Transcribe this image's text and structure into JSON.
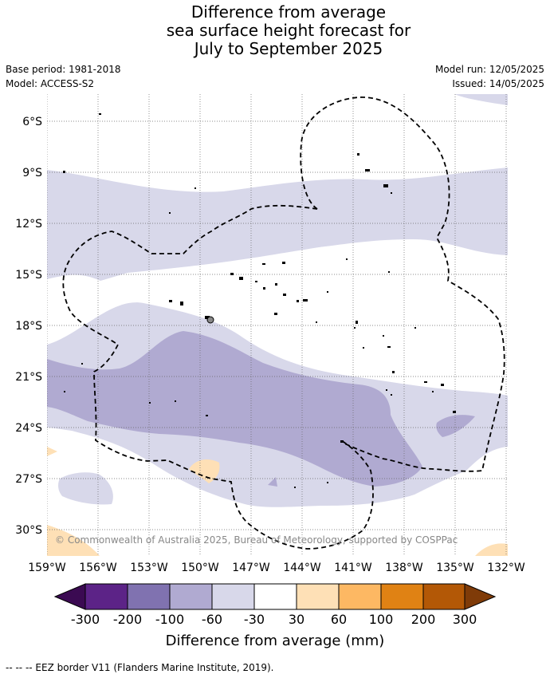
{
  "title": {
    "line1": "Difference from average",
    "line2": "sea surface height forecast for",
    "line3": "July to September 2025"
  },
  "meta": {
    "base_period": "Base period: 1981-2018",
    "model": "Model: ACCESS-S2",
    "model_run": "Model run: 12/05/2025",
    "issued": "Issued: 14/05/2025"
  },
  "map": {
    "lat_labels": [
      "6°S",
      "9°S",
      "12°S",
      "15°S",
      "18°S",
      "21°S",
      "24°S",
      "27°S",
      "30°S"
    ],
    "lon_labels": [
      "159°W",
      "156°W",
      "153°W",
      "150°W",
      "147°W",
      "144°W",
      "141°W",
      "138°W",
      "135°W",
      "132°W"
    ],
    "copyright": "© Commonwealth of Australia 2025, Bureau of Meteorology, supported by COSPPac"
  },
  "legend": {
    "ticks": [
      "-300",
      "-200",
      "-100",
      "-60",
      "-30",
      "30",
      "60",
      "100",
      "200",
      "300"
    ],
    "title": "Difference from average (mm)",
    "colors": [
      "#3b0a52",
      "#5c2387",
      "#8072b0",
      "#b0aad1",
      "#d8d8ea",
      "#ffffff",
      "#fee0b6",
      "#fdb863",
      "#e08214",
      "#b35806",
      "#7f3b08"
    ]
  },
  "footnote": "-- -- -- EEZ border V11 (Flanders Marine Institute, 2019)."
}
